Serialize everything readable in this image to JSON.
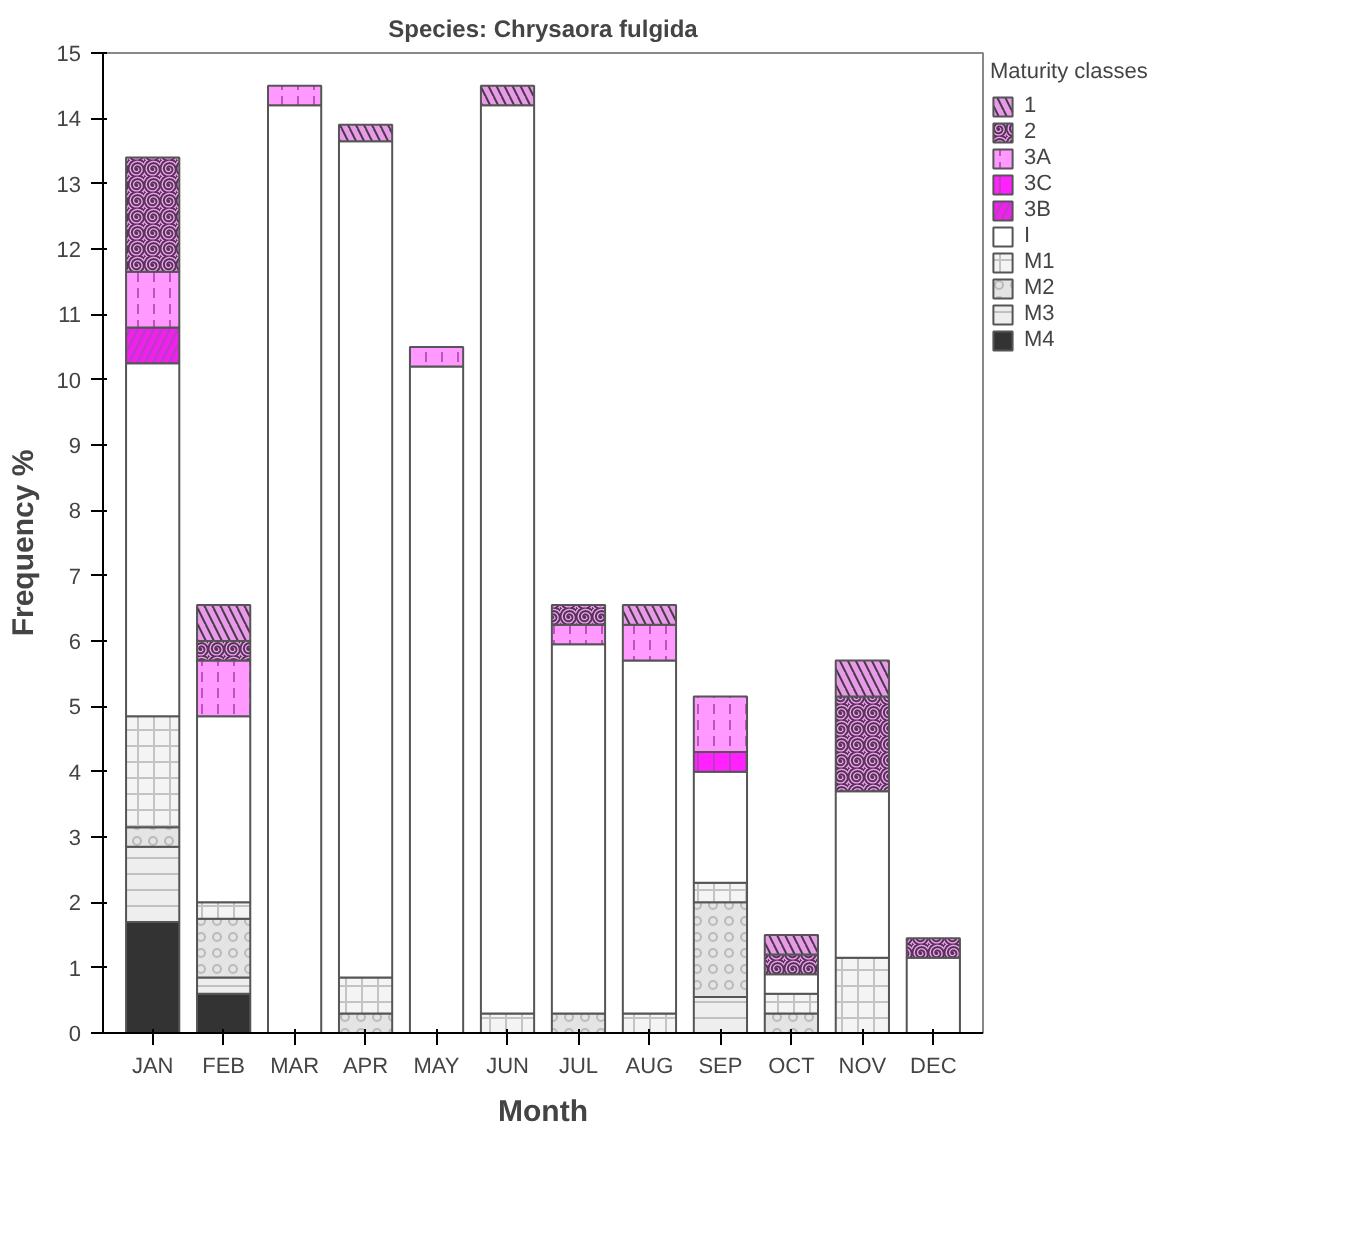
{
  "chart_data": {
    "type": "bar",
    "stacked": true,
    "title": "Species: Chrysaora fulgida",
    "xlabel": "Month",
    "ylabel": "Frequency %",
    "legend_title": "Maturity classes",
    "categories": [
      "JAN",
      "FEB",
      "MAR",
      "APR",
      "MAY",
      "JUN",
      "JUL",
      "AUG",
      "SEP",
      "OCT",
      "NOV",
      "DEC"
    ],
    "ylim": [
      0,
      15
    ],
    "yticks": [
      0,
      1,
      2,
      3,
      4,
      5,
      6,
      7,
      8,
      9,
      10,
      11,
      12,
      13,
      14,
      15
    ],
    "grid": false,
    "legend": "right",
    "series": [
      {
        "name": "M4",
        "color": "#333333",
        "values": [
          1.7,
          0.6,
          null,
          null,
          null,
          null,
          null,
          null,
          null,
          null,
          null,
          null
        ]
      },
      {
        "name": "M3",
        "color": "#eeeeee",
        "values": [
          1.15,
          0.25,
          null,
          null,
          null,
          null,
          null,
          null,
          0.55,
          null,
          null,
          null
        ]
      },
      {
        "name": "M2",
        "color": "#e4e4e4",
        "values": [
          0.3,
          0.9,
          null,
          0.3,
          null,
          null,
          0.3,
          null,
          1.45,
          0.3,
          null,
          null
        ]
      },
      {
        "name": "M1",
        "color": "#f4f4f4",
        "values": [
          1.7,
          0.25,
          null,
          0.55,
          null,
          0.3,
          null,
          0.3,
          0.3,
          0.3,
          1.15,
          null
        ]
      },
      {
        "name": "I",
        "color": "#ffffff",
        "values": [
          5.4,
          2.85,
          14.2,
          12.8,
          10.2,
          13.9,
          5.65,
          5.4,
          1.7,
          0.3,
          2.55,
          1.15
        ]
      },
      {
        "name": "3B",
        "color": "#ee22ee",
        "values": [
          0.55,
          null,
          null,
          null,
          null,
          null,
          null,
          null,
          null,
          null,
          null,
          null
        ]
      },
      {
        "name": "3C",
        "color": "#ff22ff",
        "values": [
          null,
          null,
          null,
          null,
          null,
          null,
          null,
          null,
          0.3,
          null,
          null,
          null
        ]
      },
      {
        "name": "3A",
        "color": "#ff99ff",
        "values": [
          0.85,
          0.85,
          0.3,
          null,
          0.3,
          null,
          0.3,
          0.55,
          0.85,
          null,
          null,
          null
        ]
      },
      {
        "name": "2",
        "color": "#ff99ff",
        "values": [
          1.75,
          0.3,
          null,
          null,
          null,
          null,
          0.3,
          null,
          null,
          0.3,
          1.45,
          0.3
        ]
      },
      {
        "name": "1",
        "color": "#e89ae8",
        "values": [
          null,
          0.55,
          null,
          0.25,
          null,
          0.3,
          null,
          0.3,
          null,
          0.3,
          0.55,
          null
        ]
      }
    ]
  }
}
